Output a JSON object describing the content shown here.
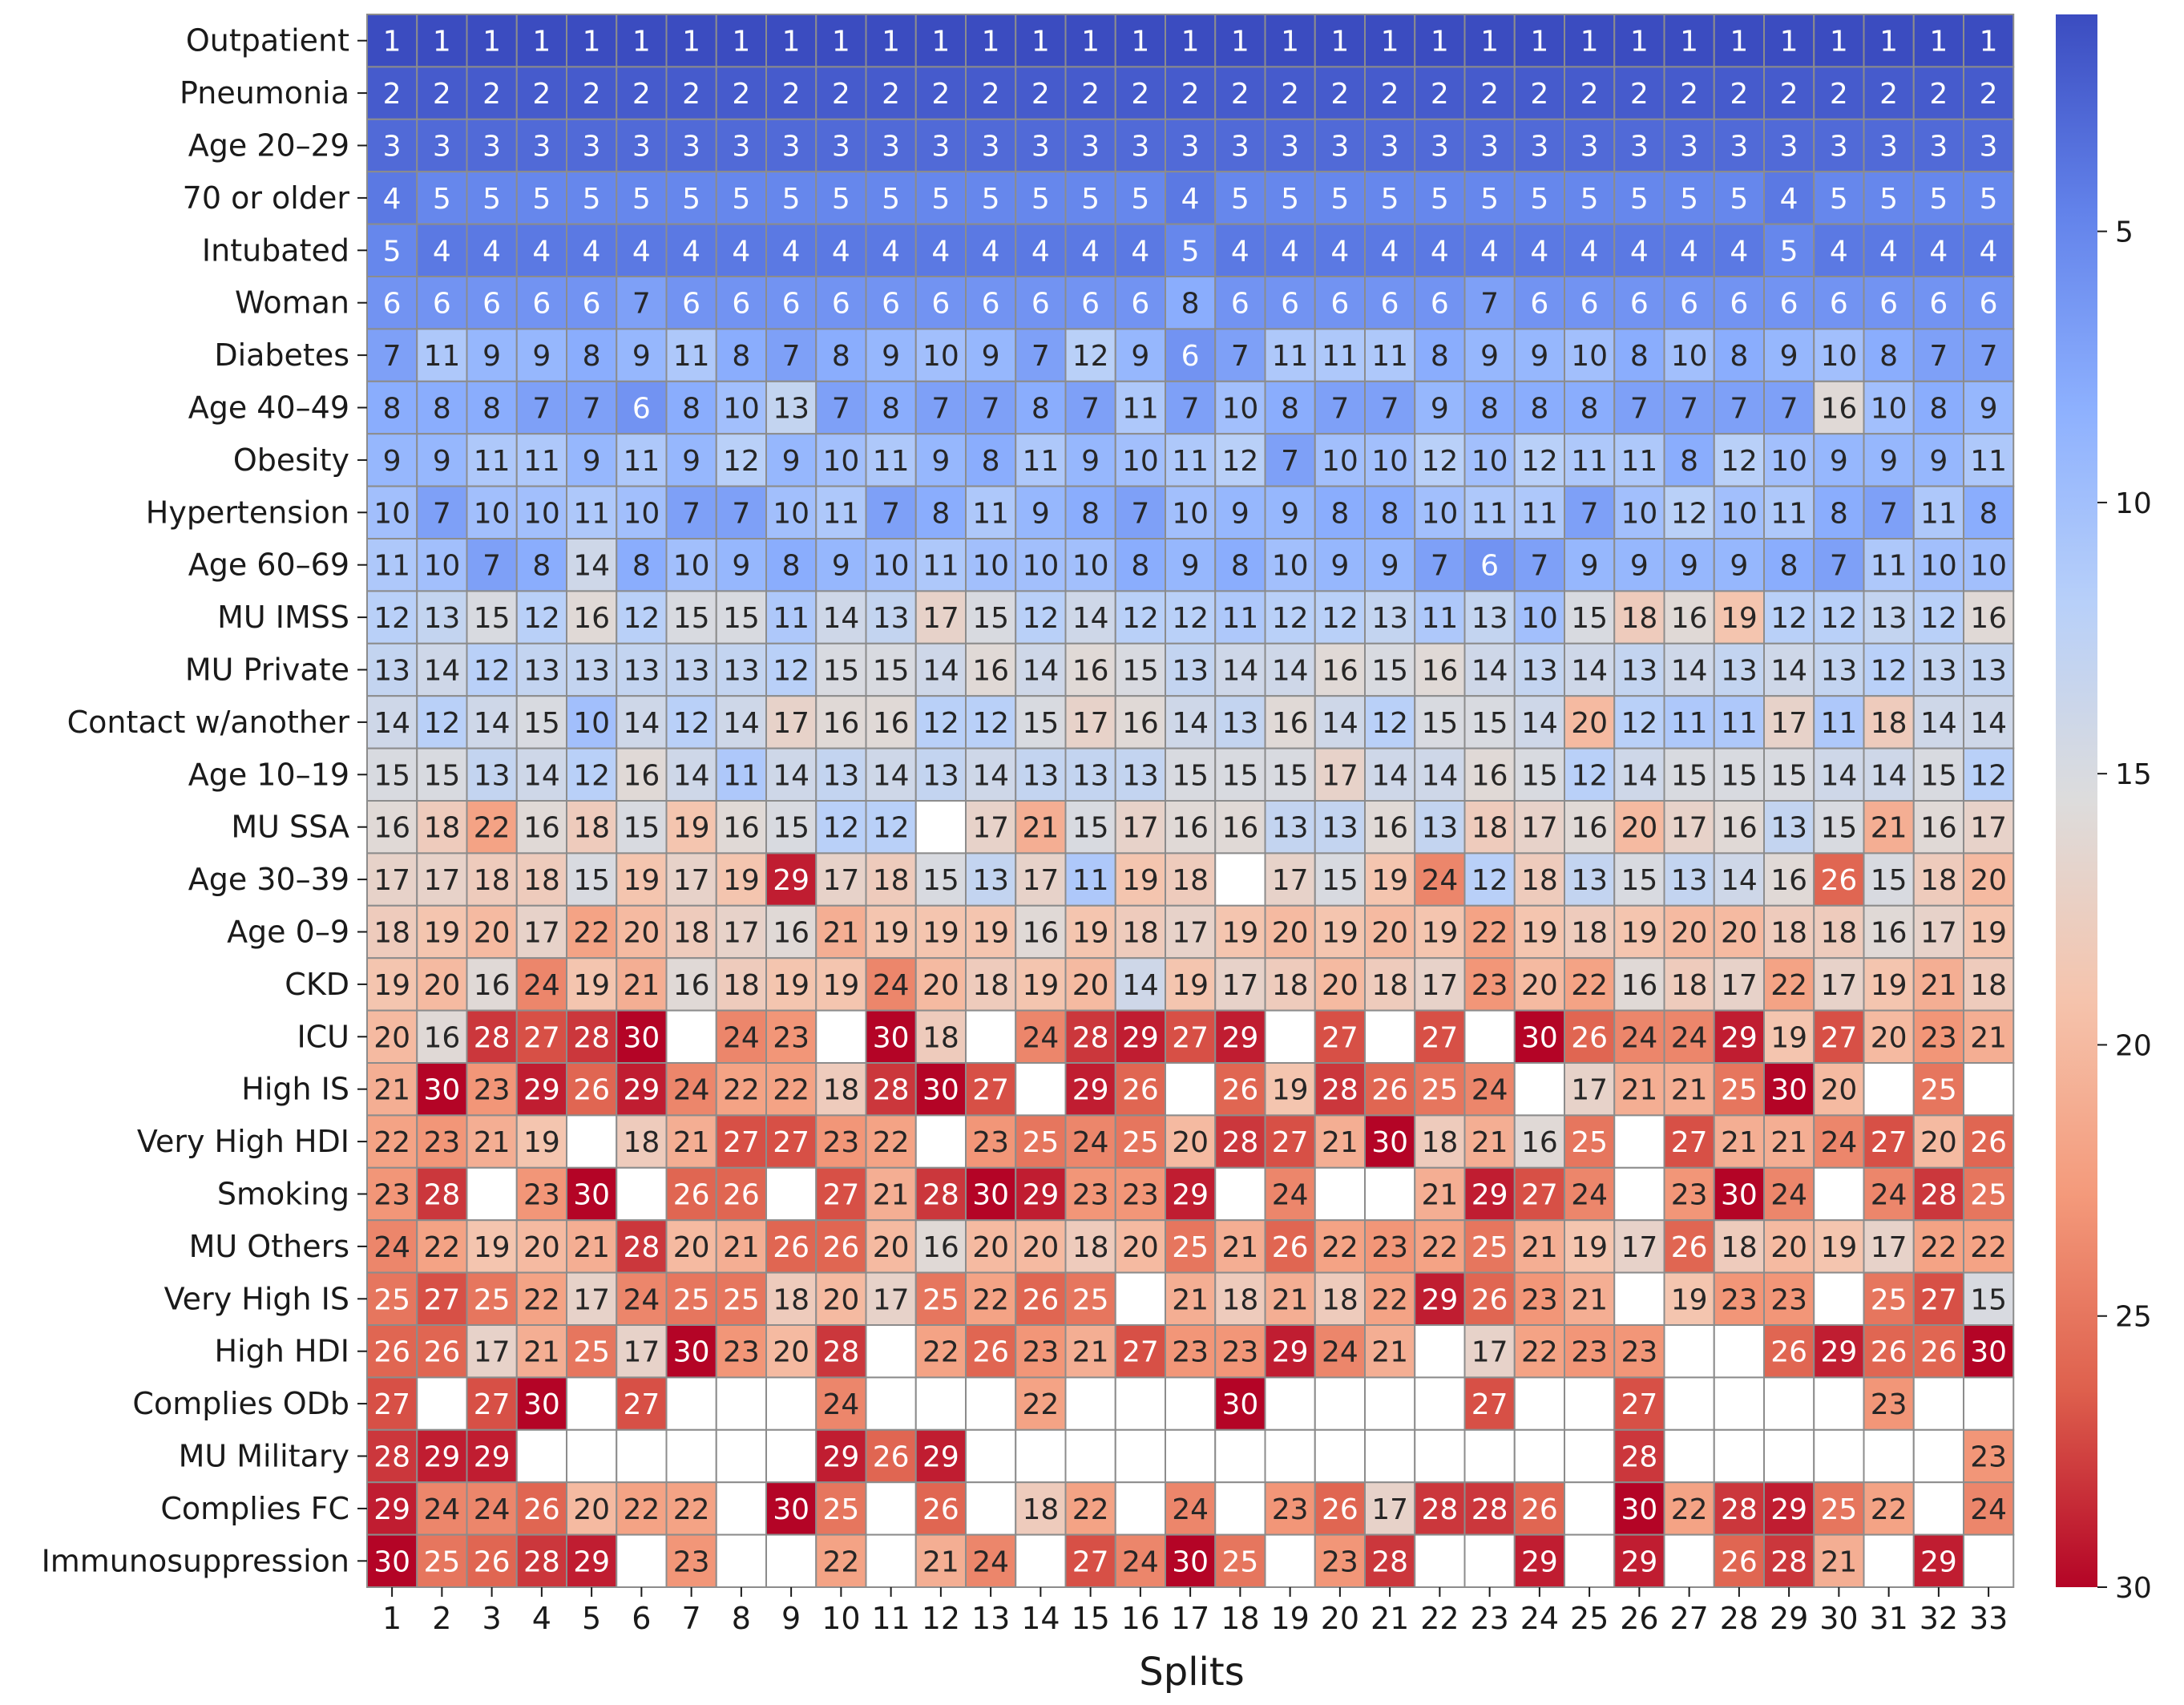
{
  "chart_data": {
    "type": "heatmap",
    "title": "",
    "xlabel": "Splits",
    "ylabel": "",
    "columns": [
      "1",
      "2",
      "3",
      "4",
      "5",
      "6",
      "7",
      "8",
      "9",
      "10",
      "11",
      "12",
      "13",
      "14",
      "15",
      "16",
      "17",
      "18",
      "19",
      "20",
      "21",
      "22",
      "23",
      "24",
      "25",
      "26",
      "27",
      "28",
      "29",
      "30",
      "31",
      "32",
      "33"
    ],
    "rows": [
      "Outpatient",
      "Pneumonia",
      "Age 20–29",
      "70 or older",
      "Intubated",
      "Woman",
      "Diabetes",
      "Age 40–49",
      "Obesity",
      "Hypertension",
      "Age 60–69",
      "MU IMSS",
      "MU Private",
      "Contact w/another",
      "Age 10–19",
      "MU SSA",
      "Age 30–39",
      "Age 0–9",
      "CKD",
      "ICU",
      "High IS",
      "Very High HDI",
      "Smoking",
      "MU Others",
      "Very High IS",
      "High HDI",
      "Complies ODb",
      "MU Military",
      "Complies FC",
      "Immunosuppression"
    ],
    "values": [
      [
        1,
        1,
        1,
        1,
        1,
        1,
        1,
        1,
        1,
        1,
        1,
        1,
        1,
        1,
        1,
        1,
        1,
        1,
        1,
        1,
        1,
        1,
        1,
        1,
        1,
        1,
        1,
        1,
        1,
        1,
        1,
        1,
        1
      ],
      [
        2,
        2,
        2,
        2,
        2,
        2,
        2,
        2,
        2,
        2,
        2,
        2,
        2,
        2,
        2,
        2,
        2,
        2,
        2,
        2,
        2,
        2,
        2,
        2,
        2,
        2,
        2,
        2,
        2,
        2,
        2,
        2,
        2
      ],
      [
        3,
        3,
        3,
        3,
        3,
        3,
        3,
        3,
        3,
        3,
        3,
        3,
        3,
        3,
        3,
        3,
        3,
        3,
        3,
        3,
        3,
        3,
        3,
        3,
        3,
        3,
        3,
        3,
        3,
        3,
        3,
        3,
        3
      ],
      [
        4,
        5,
        5,
        5,
        5,
        5,
        5,
        5,
        5,
        5,
        5,
        5,
        5,
        5,
        5,
        5,
        4,
        5,
        5,
        5,
        5,
        5,
        5,
        5,
        5,
        5,
        5,
        5,
        4,
        5,
        5,
        5,
        5
      ],
      [
        5,
        4,
        4,
        4,
        4,
        4,
        4,
        4,
        4,
        4,
        4,
        4,
        4,
        4,
        4,
        4,
        5,
        4,
        4,
        4,
        4,
        4,
        4,
        4,
        4,
        4,
        4,
        4,
        5,
        4,
        4,
        4,
        4
      ],
      [
        6,
        6,
        6,
        6,
        6,
        7,
        6,
        6,
        6,
        6,
        6,
        6,
        6,
        6,
        6,
        6,
        8,
        6,
        6,
        6,
        6,
        6,
        7,
        6,
        6,
        6,
        6,
        6,
        6,
        6,
        6,
        6,
        6
      ],
      [
        7,
        11,
        9,
        9,
        8,
        9,
        11,
        8,
        7,
        8,
        9,
        10,
        9,
        7,
        12,
        9,
        6,
        7,
        11,
        11,
        11,
        8,
        9,
        9,
        10,
        8,
        10,
        8,
        9,
        10,
        8,
        7,
        7
      ],
      [
        8,
        8,
        8,
        7,
        7,
        6,
        8,
        10,
        13,
        7,
        8,
        7,
        7,
        8,
        7,
        11,
        7,
        10,
        8,
        7,
        7,
        9,
        8,
        8,
        8,
        7,
        7,
        7,
        7,
        16,
        10,
        8,
        9
      ],
      [
        9,
        9,
        11,
        11,
        9,
        11,
        9,
        12,
        9,
        10,
        11,
        9,
        8,
        11,
        9,
        10,
        11,
        12,
        7,
        10,
        10,
        12,
        10,
        12,
        11,
        11,
        8,
        12,
        10,
        9,
        9,
        9,
        11
      ],
      [
        10,
        7,
        10,
        10,
        11,
        10,
        7,
        7,
        10,
        11,
        7,
        8,
        11,
        9,
        8,
        7,
        10,
        9,
        9,
        8,
        8,
        10,
        11,
        11,
        7,
        10,
        12,
        10,
        11,
        8,
        7,
        11,
        8
      ],
      [
        11,
        10,
        7,
        8,
        14,
        8,
        10,
        9,
        8,
        9,
        10,
        11,
        10,
        10,
        10,
        8,
        9,
        8,
        10,
        9,
        9,
        7,
        6,
        7,
        9,
        9,
        9,
        9,
        8,
        7,
        11,
        10,
        10
      ],
      [
        12,
        13,
        15,
        12,
        16,
        12,
        15,
        15,
        11,
        14,
        13,
        17,
        15,
        12,
        14,
        12,
        12,
        11,
        12,
        12,
        13,
        11,
        13,
        10,
        15,
        18,
        16,
        19,
        12,
        12,
        13,
        12,
        16
      ],
      [
        13,
        14,
        12,
        13,
        13,
        13,
        13,
        13,
        12,
        15,
        15,
        14,
        16,
        14,
        16,
        15,
        13,
        14,
        14,
        16,
        15,
        16,
        14,
        13,
        14,
        13,
        14,
        13,
        14,
        13,
        12,
        13,
        13
      ],
      [
        14,
        12,
        14,
        15,
        10,
        14,
        12,
        14,
        17,
        16,
        16,
        12,
        12,
        15,
        17,
        16,
        14,
        13,
        16,
        14,
        12,
        15,
        15,
        14,
        20,
        12,
        11,
        11,
        17,
        11,
        18,
        14,
        14
      ],
      [
        15,
        15,
        13,
        14,
        12,
        16,
        14,
        11,
        14,
        13,
        14,
        13,
        14,
        13,
        13,
        13,
        15,
        15,
        15,
        17,
        14,
        14,
        16,
        15,
        12,
        14,
        15,
        15,
        15,
        14,
        14,
        15,
        12
      ],
      [
        16,
        18,
        22,
        16,
        18,
        15,
        19,
        16,
        15,
        12,
        12,
        null,
        17,
        21,
        15,
        17,
        16,
        16,
        13,
        13,
        16,
        13,
        18,
        17,
        16,
        20,
        17,
        16,
        13,
        15,
        21,
        16,
        17
      ],
      [
        17,
        17,
        18,
        18,
        15,
        19,
        17,
        19,
        29,
        17,
        18,
        15,
        13,
        17,
        11,
        19,
        18,
        null,
        17,
        15,
        19,
        24,
        12,
        18,
        13,
        15,
        13,
        14,
        16,
        26,
        15,
        18,
        20
      ],
      [
        18,
        19,
        20,
        17,
        22,
        20,
        18,
        17,
        16,
        21,
        19,
        19,
        19,
        16,
        19,
        18,
        17,
        19,
        20,
        19,
        20,
        19,
        22,
        19,
        18,
        19,
        20,
        20,
        18,
        18,
        16,
        17,
        19
      ],
      [
        19,
        20,
        16,
        24,
        19,
        21,
        16,
        18,
        19,
        19,
        24,
        20,
        18,
        19,
        20,
        14,
        19,
        17,
        18,
        20,
        18,
        17,
        23,
        20,
        22,
        16,
        18,
        17,
        22,
        17,
        19,
        21,
        18
      ],
      [
        20,
        16,
        28,
        27,
        28,
        30,
        null,
        24,
        23,
        null,
        30,
        18,
        null,
        24,
        28,
        29,
        27,
        29,
        null,
        27,
        null,
        27,
        null,
        30,
        26,
        24,
        24,
        29,
        19,
        27,
        20,
        23,
        21
      ],
      [
        21,
        30,
        23,
        29,
        26,
        29,
        24,
        22,
        22,
        18,
        28,
        30,
        27,
        null,
        29,
        26,
        null,
        26,
        19,
        28,
        26,
        25,
        24,
        null,
        17,
        21,
        21,
        25,
        30,
        20,
        null,
        25,
        null
      ],
      [
        22,
        23,
        21,
        19,
        null,
        18,
        21,
        27,
        27,
        23,
        22,
        null,
        23,
        25,
        24,
        25,
        20,
        28,
        27,
        21,
        30,
        18,
        21,
        16,
        25,
        null,
        27,
        21,
        21,
        24,
        27,
        20,
        26
      ],
      [
        23,
        28,
        null,
        23,
        30,
        null,
        26,
        26,
        null,
        27,
        21,
        28,
        30,
        29,
        23,
        23,
        29,
        null,
        24,
        null,
        null,
        21,
        29,
        27,
        24,
        null,
        23,
        30,
        24,
        null,
        24,
        28,
        25
      ],
      [
        24,
        22,
        19,
        20,
        21,
        28,
        20,
        21,
        26,
        26,
        20,
        16,
        20,
        20,
        18,
        20,
        25,
        21,
        26,
        22,
        23,
        22,
        25,
        21,
        19,
        17,
        26,
        18,
        20,
        19,
        17,
        22,
        22
      ],
      [
        25,
        27,
        25,
        22,
        17,
        24,
        25,
        25,
        18,
        20,
        17,
        25,
        22,
        26,
        25,
        null,
        21,
        18,
        21,
        18,
        22,
        29,
        26,
        23,
        21,
        null,
        19,
        23,
        23,
        null,
        25,
        27,
        15
      ],
      [
        26,
        26,
        17,
        21,
        25,
        17,
        30,
        23,
        20,
        28,
        null,
        22,
        26,
        23,
        21,
        27,
        23,
        23,
        29,
        24,
        21,
        null,
        17,
        22,
        23,
        23,
        null,
        null,
        26,
        29,
        26,
        26,
        30
      ],
      [
        27,
        null,
        27,
        30,
        null,
        27,
        null,
        null,
        null,
        24,
        null,
        null,
        null,
        22,
        null,
        null,
        null,
        30,
        null,
        null,
        null,
        null,
        27,
        null,
        null,
        27,
        null,
        null,
        null,
        null,
        23,
        null,
        null
      ],
      [
        28,
        29,
        29,
        null,
        null,
        null,
        null,
        null,
        null,
        29,
        26,
        29,
        null,
        null,
        null,
        null,
        null,
        null,
        null,
        null,
        null,
        null,
        null,
        null,
        null,
        28,
        null,
        null,
        null,
        null,
        null,
        null,
        23
      ],
      [
        29,
        24,
        24,
        26,
        20,
        22,
        22,
        null,
        30,
        25,
        null,
        26,
        null,
        18,
        22,
        null,
        24,
        null,
        23,
        26,
        17,
        28,
        28,
        26,
        null,
        30,
        22,
        28,
        29,
        25,
        22,
        null,
        24
      ],
      [
        30,
        25,
        26,
        28,
        29,
        null,
        23,
        null,
        null,
        22,
        null,
        21,
        24,
        null,
        27,
        24,
        30,
        25,
        null,
        23,
        28,
        null,
        null,
        29,
        null,
        29,
        null,
        26,
        28,
        21,
        null,
        29,
        null
      ]
    ],
    "vmin": 1,
    "vmax": 30,
    "colormap": "coolwarm (reversed): 1 = blue #3b4cc0, 15.5 = gray #dddcdc, 30 = red #b40426",
    "colorbar": {
      "position": "right",
      "ticks": [
        5,
        10,
        15,
        20,
        25,
        30
      ]
    },
    "grid": true
  }
}
